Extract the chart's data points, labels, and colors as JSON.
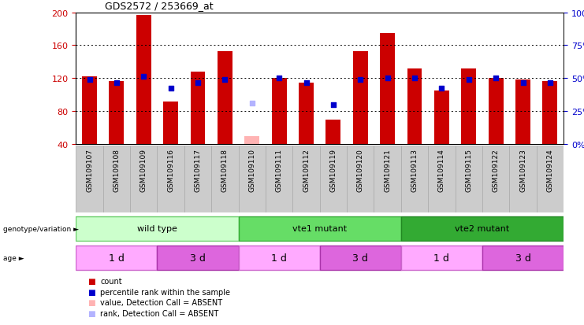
{
  "title": "GDS2572 / 253669_at",
  "samples": [
    "GSM109107",
    "GSM109108",
    "GSM109109",
    "GSM109116",
    "GSM109117",
    "GSM109118",
    "GSM109110",
    "GSM109111",
    "GSM109112",
    "GSM109119",
    "GSM109120",
    "GSM109121",
    "GSM109113",
    "GSM109114",
    "GSM109115",
    "GSM109122",
    "GSM109123",
    "GSM109124"
  ],
  "counts": [
    122,
    117,
    197,
    92,
    128,
    153,
    null,
    120,
    115,
    70,
    153,
    175,
    132,
    105,
    132,
    120,
    118,
    117
  ],
  "absent_counts": [
    null,
    null,
    null,
    null,
    null,
    null,
    50,
    null,
    null,
    null,
    null,
    null,
    null,
    null,
    null,
    null,
    null,
    null
  ],
  "ranks": [
    118,
    115,
    122,
    108,
    115,
    118,
    null,
    120,
    115,
    88,
    118,
    120,
    120,
    108,
    118,
    120,
    115,
    115
  ],
  "absent_ranks": [
    null,
    null,
    null,
    null,
    null,
    null,
    90,
    null,
    null,
    null,
    null,
    null,
    null,
    null,
    null,
    null,
    null,
    null
  ],
  "ymin": 40,
  "ymax": 200,
  "yticks_left": [
    40,
    80,
    120,
    160,
    200
  ],
  "yticks_right_vals": [
    0,
    25,
    50,
    75,
    100
  ],
  "yticks_right_pos": [
    40,
    80,
    120,
    160,
    200
  ],
  "bar_color": "#cc0000",
  "absent_bar_color": "#ffb3b3",
  "rank_color": "#0000cc",
  "absent_rank_color": "#b3b3ff",
  "grid_color": "#000000",
  "bg_color": "#ffffff",
  "genotype_groups": [
    {
      "label": "wild type",
      "start": 0,
      "end": 6,
      "color": "#ccffcc",
      "border": "#66cc66"
    },
    {
      "label": "vte1 mutant",
      "start": 6,
      "end": 12,
      "color": "#66dd66",
      "border": "#33aa33"
    },
    {
      "label": "vte2 mutant",
      "start": 12,
      "end": 18,
      "color": "#33aa33",
      "border": "#228822"
    }
  ],
  "age_groups": [
    {
      "label": "1 d",
      "start": 0,
      "end": 3,
      "color": "#ffaaff",
      "border": "#cc66cc"
    },
    {
      "label": "3 d",
      "start": 3,
      "end": 6,
      "color": "#dd66dd",
      "border": "#aa33aa"
    },
    {
      "label": "1 d",
      "start": 6,
      "end": 9,
      "color": "#ffaaff",
      "border": "#cc66cc"
    },
    {
      "label": "3 d",
      "start": 9,
      "end": 12,
      "color": "#dd66dd",
      "border": "#aa33aa"
    },
    {
      "label": "1 d",
      "start": 12,
      "end": 15,
      "color": "#ffaaff",
      "border": "#cc66cc"
    },
    {
      "label": "3 d",
      "start": 15,
      "end": 18,
      "color": "#dd66dd",
      "border": "#aa33aa"
    }
  ],
  "legend_items": [
    {
      "color": "#cc0000",
      "label": "count"
    },
    {
      "color": "#0000cc",
      "label": "percentile rank within the sample"
    },
    {
      "color": "#ffb3b3",
      "label": "value, Detection Call = ABSENT"
    },
    {
      "color": "#b3b3ff",
      "label": "rank, Detection Call = ABSENT"
    }
  ],
  "sample_col_color": "#cccccc",
  "sample_col_border": "#aaaaaa"
}
